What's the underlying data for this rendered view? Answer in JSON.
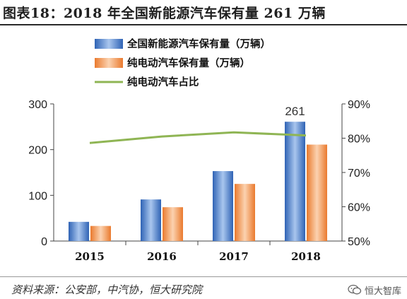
{
  "header": {
    "title": "图表18：2018 年全国新能源汽车保有量 261 万辆"
  },
  "source": "资料来源：公安部，中汽协，恒大研究院",
  "watermark": {
    "text": "恒大智库",
    "icon": "wechat-icon"
  },
  "chart_data": {
    "type": "bar",
    "categories": [
      "2015",
      "2016",
      "2017",
      "2018"
    ],
    "series": [
      {
        "name": "全国新能源汽车保有量（万辆）",
        "type": "bar",
        "axis": "left",
        "values": [
          42,
          91,
          153,
          261
        ],
        "color": "#4a7fc9"
      },
      {
        "name": "纯电动汽车保有量（万辆）",
        "type": "bar",
        "axis": "left",
        "values": [
          33,
          74,
          125,
          211
        ],
        "color": "#f08a44"
      },
      {
        "name": "纯电动汽车占比",
        "type": "line",
        "axis": "right",
        "values": [
          78.6,
          80.5,
          81.7,
          80.8
        ],
        "color": "#8fb554"
      }
    ],
    "y_left": {
      "ylim": [
        0,
        300
      ],
      "ticks": [
        "0",
        "100",
        "200",
        "300"
      ],
      "tick_values": [
        0,
        100,
        200,
        300
      ]
    },
    "y_right": {
      "ylim": [
        50,
        90
      ],
      "ticks": [
        "50%",
        "60%",
        "70%",
        "80%",
        "90%"
      ],
      "tick_values": [
        50,
        60,
        70,
        80,
        90
      ]
    },
    "data_labels": [
      {
        "category": "2018",
        "series": 0,
        "text": "261"
      }
    ],
    "legend": "top-center",
    "grid": false
  }
}
